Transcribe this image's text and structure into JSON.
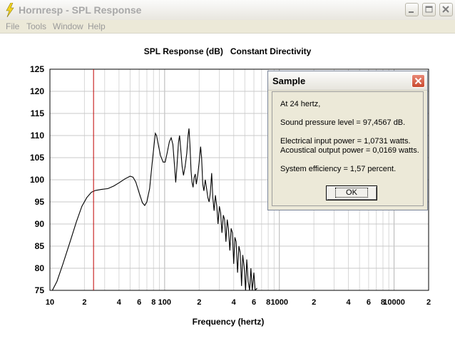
{
  "window": {
    "title": "Hornresp - SPL Response",
    "menu": [
      "File",
      "Tools",
      "Window",
      "Help"
    ]
  },
  "chart_data": {
    "type": "line",
    "title": "SPL Response (dB)   Constant Directivity",
    "xlabel": "Frequency (hertz)",
    "ylabel": "",
    "x_scale": "log",
    "xlim": [
      10,
      20000
    ],
    "ylim": [
      75,
      125
    ],
    "y_ticks": [
      125,
      120,
      115,
      110,
      105,
      100,
      95,
      90,
      85,
      80,
      75
    ],
    "x_tick_labels": [
      {
        "x": 10,
        "label": "10"
      },
      {
        "x": 20,
        "label": "2"
      },
      {
        "x": 40,
        "label": "4"
      },
      {
        "x": 60,
        "label": "6"
      },
      {
        "x": 80,
        "label": "8"
      },
      {
        "x": 100,
        "label": "100"
      },
      {
        "x": 200,
        "label": "2"
      },
      {
        "x": 400,
        "label": "4"
      },
      {
        "x": 600,
        "label": "6"
      },
      {
        "x": 800,
        "label": "8"
      },
      {
        "x": 1000,
        "label": "1000"
      },
      {
        "x": 2000,
        "label": "2"
      },
      {
        "x": 4000,
        "label": "4"
      },
      {
        "x": 6000,
        "label": "6"
      },
      {
        "x": 8000,
        "label": "8"
      },
      {
        "x": 10000,
        "label": "10000"
      },
      {
        "x": 20000,
        "label": "2"
      }
    ],
    "grid": true,
    "marker_frequency": 24,
    "marker_color": "#c00000",
    "series": [
      {
        "color": "#000000",
        "points": [
          [
            10.5,
            75
          ],
          [
            11.5,
            77
          ],
          [
            13,
            81
          ],
          [
            15,
            86
          ],
          [
            17,
            90.5
          ],
          [
            19,
            94
          ],
          [
            21,
            96
          ],
          [
            23,
            97.2
          ],
          [
            25,
            97.6
          ],
          [
            28,
            97.8
          ],
          [
            32,
            98
          ],
          [
            36,
            98.6
          ],
          [
            40,
            99.3
          ],
          [
            45,
            100.2
          ],
          [
            50,
            100.8
          ],
          [
            53,
            100.6
          ],
          [
            56,
            99.5
          ],
          [
            60,
            97
          ],
          [
            64,
            94.8
          ],
          [
            67,
            94.2
          ],
          [
            70,
            95
          ],
          [
            74,
            98
          ],
          [
            78,
            104
          ],
          [
            81,
            108
          ],
          [
            83,
            110.5
          ],
          [
            85,
            110
          ],
          [
            88,
            108
          ],
          [
            92,
            105.5
          ],
          [
            97,
            104
          ],
          [
            101,
            104
          ],
          [
            105,
            106
          ],
          [
            110,
            108.6
          ],
          [
            114,
            109.5
          ],
          [
            118,
            108
          ],
          [
            122,
            103
          ],
          [
            125,
            99.4
          ],
          [
            128,
            103
          ],
          [
            132,
            108.5
          ],
          [
            135,
            110
          ],
          [
            138,
            107
          ],
          [
            142,
            103
          ],
          [
            146,
            101
          ],
          [
            151,
            103
          ],
          [
            156,
            106
          ],
          [
            160,
            110
          ],
          [
            163,
            111.6
          ],
          [
            166,
            108
          ],
          [
            170,
            102
          ],
          [
            173,
            99.5
          ],
          [
            177,
            98.3
          ],
          [
            181,
            100.5
          ],
          [
            185,
            101.3
          ],
          [
            189,
            99
          ],
          [
            194,
            101
          ],
          [
            200,
            104
          ],
          [
            206,
            107.5
          ],
          [
            210,
            105
          ],
          [
            215,
            99
          ],
          [
            220,
            97.5
          ],
          [
            226,
            100
          ],
          [
            232,
            98
          ],
          [
            238,
            96
          ],
          [
            244,
            95
          ],
          [
            250,
            97
          ],
          [
            257,
            101.5
          ],
          [
            263,
            96
          ],
          [
            270,
            93
          ],
          [
            277,
            96.5
          ],
          [
            285,
            94
          ],
          [
            292,
            90
          ],
          [
            300,
            94
          ],
          [
            308,
            92.5
          ],
          [
            316,
            88
          ],
          [
            325,
            92
          ],
          [
            333,
            91
          ],
          [
            342,
            86
          ],
          [
            351,
            91
          ],
          [
            360,
            89
          ],
          [
            370,
            84
          ],
          [
            380,
            89
          ],
          [
            390,
            88
          ],
          [
            400,
            81
          ],
          [
            410,
            87
          ],
          [
            420,
            86
          ],
          [
            432,
            79
          ],
          [
            444,
            85
          ],
          [
            456,
            83.5
          ],
          [
            468,
            76
          ],
          [
            480,
            83
          ],
          [
            494,
            80
          ],
          [
            508,
            75
          ],
          [
            520,
            82
          ],
          [
            535,
            77
          ],
          [
            550,
            75
          ],
          [
            565,
            80
          ],
          [
            580,
            75
          ],
          [
            600,
            79
          ],
          [
            615,
            75
          ],
          [
            640,
            75.5
          ]
        ]
      }
    ]
  },
  "dialog": {
    "title": "Sample",
    "line1": "At 24 hertz,",
    "line2": "Sound pressure level = 97,4567 dB.",
    "line3": "Electrical input power = 1,0731 watts.",
    "line4": "Acoustical output power = 0,0169 watts.",
    "line5": "System efficiency = 1,57 percent.",
    "ok_label": "OK"
  },
  "icons": {
    "app": "lightning-icon",
    "minimize": "minimize-icon",
    "maximize": "maximize-icon",
    "close": "close-icon"
  }
}
